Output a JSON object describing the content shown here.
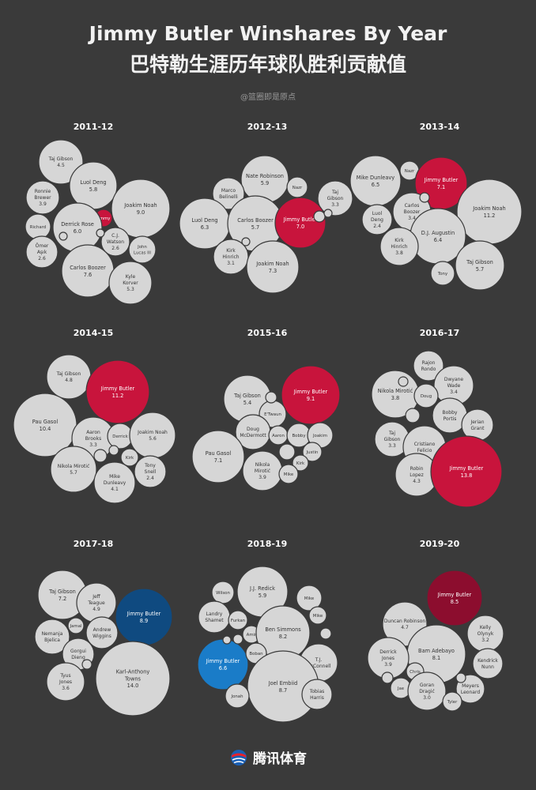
{
  "header": {
    "title_en": "Jimmy Butler Winshares By Year",
    "title_cn": "巴特勒生涯历年球队胜利贡献值",
    "credit": "@篮圈即是原点"
  },
  "footer": {
    "brand": "腾讯体育",
    "logo_icon": "tencent-sports-ball-icon"
  },
  "colors": {
    "bubble": "#d6d6d6",
    "text": "#333333",
    "background": "#3a3a3a"
  },
  "chart_data": [
    {
      "type": "bubble",
      "season": "2011-12",
      "highlight_color": "#c8143c",
      "players": [
        {
          "name": "Taj Gibson",
          "ws": 4.5
        },
        {
          "name": "Luol Deng",
          "ws": 5.8
        },
        {
          "name": "Ronnie Brewer",
          "ws": 3.9
        },
        {
          "name": "Joakim Noah",
          "ws": 9.0
        },
        {
          "name": "Jimmy",
          "ws": null,
          "highlight": true
        },
        {
          "name": "Derrick Rose",
          "ws": 6.0
        },
        {
          "name": "Richard",
          "ws": null
        },
        {
          "name": "C.J. Watson",
          "ws": 2.6
        },
        {
          "name": "Ömer Aşık",
          "ws": 2.6
        },
        {
          "name": "John Lucas III",
          "ws": null
        },
        {
          "name": "Carlos Boozer",
          "ws": 7.6
        },
        {
          "name": "Kyle Korver",
          "ws": 5.3
        },
        {
          "name": "",
          "ws": null
        },
        {
          "name": "",
          "ws": null
        }
      ]
    },
    {
      "type": "bubble",
      "season": "2012-13",
      "highlight_color": "#c8143c",
      "players": [
        {
          "name": "Nate Robinson",
          "ws": 5.9
        },
        {
          "name": "Marco Belinelli",
          "ws": null
        },
        {
          "name": "Nazr",
          "ws": null
        },
        {
          "name": "Taj Gibson",
          "ws": 3.3
        },
        {
          "name": "Luol Deng",
          "ws": 6.3
        },
        {
          "name": "Carlos Boozer",
          "ws": 5.7
        },
        {
          "name": "Jimmy Butler",
          "ws": 7.0,
          "highlight": true
        },
        {
          "name": "Kirk Hinrich",
          "ws": 3.1
        },
        {
          "name": "Joakim Noah",
          "ws": 7.3
        },
        {
          "name": "",
          "ws": null
        },
        {
          "name": "",
          "ws": null
        },
        {
          "name": "",
          "ws": null
        }
      ]
    },
    {
      "type": "bubble",
      "season": "2013-14",
      "highlight_color": "#c8143c",
      "players": [
        {
          "name": "Mike Dunleavy",
          "ws": 6.5
        },
        {
          "name": "Nazr",
          "ws": null
        },
        {
          "name": "Jimmy Butler",
          "ws": 7.1,
          "highlight": true
        },
        {
          "name": "Carlos Boozer",
          "ws": 3.4
        },
        {
          "name": "Luol Deng",
          "ws": 2.4
        },
        {
          "name": "Joakim Noah",
          "ws": 11.2
        },
        {
          "name": "D.J. Augustin",
          "ws": 6.4
        },
        {
          "name": "Kirk Hinrich",
          "ws": 3.8
        },
        {
          "name": "Taj Gibson",
          "ws": 5.7
        },
        {
          "name": "Tony",
          "ws": null
        },
        {
          "name": "",
          "ws": null
        }
      ]
    },
    {
      "type": "bubble",
      "season": "2014-15",
      "highlight_color": "#c8143c",
      "players": [
        {
          "name": "Taj Gibson",
          "ws": 4.8
        },
        {
          "name": "Jimmy Butler",
          "ws": 11.2,
          "highlight": true
        },
        {
          "name": "Pau Gasol",
          "ws": 10.4
        },
        {
          "name": "Aaron Brooks",
          "ws": 3.3
        },
        {
          "name": "Derrick",
          "ws": null
        },
        {
          "name": "Joakim Noah",
          "ws": 5.6
        },
        {
          "name": "Kirk",
          "ws": null
        },
        {
          "name": "Nikola Mirotić",
          "ws": 5.7
        },
        {
          "name": "Tony Snell",
          "ws": 2.4
        },
        {
          "name": "Mike Dunleavy",
          "ws": 4.1
        },
        {
          "name": "",
          "ws": null
        },
        {
          "name": "",
          "ws": null
        }
      ]
    },
    {
      "type": "bubble",
      "season": "2015-16",
      "highlight_color": "#c8143c",
      "players": [
        {
          "name": "Taj Gibson",
          "ws": 5.4
        },
        {
          "name": "Jimmy Butler",
          "ws": 9.1,
          "highlight": true
        },
        {
          "name": "E'Twaun",
          "ws": null
        },
        {
          "name": "Doug McDermott",
          "ws": null
        },
        {
          "name": "Aaron",
          "ws": null
        },
        {
          "name": "Bobby",
          "ws": null
        },
        {
          "name": "Joakim",
          "ws": null
        },
        {
          "name": "Justin",
          "ws": null
        },
        {
          "name": "Pau Gasol",
          "ws": 7.1
        },
        {
          "name": "Kirk",
          "ws": null
        },
        {
          "name": "Nikola Mirotić",
          "ws": 3.9
        },
        {
          "name": "Mike",
          "ws": null
        },
        {
          "name": "",
          "ws": null
        },
        {
          "name": "",
          "ws": null
        }
      ]
    },
    {
      "type": "bubble",
      "season": "2016-17",
      "highlight_color": "#c8143c",
      "players": [
        {
          "name": "Rajon Rondo",
          "ws": null
        },
        {
          "name": "Dwyane Wade",
          "ws": 3.4
        },
        {
          "name": "Nikola Mirotić",
          "ws": 3.8
        },
        {
          "name": "Doug",
          "ws": null
        },
        {
          "name": "Bobby Portis",
          "ws": null
        },
        {
          "name": "Jerian Grant",
          "ws": null
        },
        {
          "name": "Taj Gibson",
          "ws": 3.3
        },
        {
          "name": "Cristiano Felicio",
          "ws": null
        },
        {
          "name": "Robin Lopez",
          "ws": 4.3
        },
        {
          "name": "Jimmy Butler",
          "ws": 13.8,
          "highlight": true
        },
        {
          "name": "",
          "ws": null
        },
        {
          "name": "",
          "ws": null
        }
      ]
    },
    {
      "type": "bubble",
      "season": "2017-18",
      "highlight_color": "#0f4a80",
      "players": [
        {
          "name": "Taj Gibson",
          "ws": 7.2
        },
        {
          "name": "Jeff Teague",
          "ws": 4.9
        },
        {
          "name": "Jimmy Butler",
          "ws": 8.9,
          "highlight": true
        },
        {
          "name": "Jamal",
          "ws": null
        },
        {
          "name": "Nemanja Bjelica",
          "ws": null
        },
        {
          "name": "Andrew Wiggins",
          "ws": null
        },
        {
          "name": "Gorgui Dieng",
          "ws": null
        },
        {
          "name": "Tyus Jones",
          "ws": 3.6
        },
        {
          "name": "Karl-Anthony Towns",
          "ws": 14.0
        },
        {
          "name": "",
          "ws": null
        }
      ]
    },
    {
      "type": "bubble",
      "season": "2018-19",
      "highlight_color": "#1a7cc8",
      "players": [
        {
          "name": "Wilson",
          "ws": null
        },
        {
          "name": "J.J. Redick",
          "ws": 5.9
        },
        {
          "name": "Mike",
          "ws": null
        },
        {
          "name": "Landry Shamet",
          "ws": null
        },
        {
          "name": "Furkan",
          "ws": null
        },
        {
          "name": "Mike",
          "ws": null
        },
        {
          "name": "Amir",
          "ws": null
        },
        {
          "name": "Ben Simmons",
          "ws": 8.2
        },
        {
          "name": "Jimmy Butler",
          "ws": 6.6,
          "highlight": true
        },
        {
          "name": "Boban",
          "ws": null
        },
        {
          "name": "T.J. McConnell",
          "ws": null
        },
        {
          "name": "Joel Embiid",
          "ws": 8.7
        },
        {
          "name": "Tobias Harris",
          "ws": null
        },
        {
          "name": "Jonah",
          "ws": null
        },
        {
          "name": "",
          "ws": null
        },
        {
          "name": "",
          "ws": null
        },
        {
          "name": "",
          "ws": null
        }
      ]
    },
    {
      "type": "bubble",
      "season": "2019-20",
      "highlight_color": "#8c0d2e",
      "players": [
        {
          "name": "Jimmy Butler",
          "ws": 8.5,
          "highlight": true
        },
        {
          "name": "Duncan Robinson",
          "ws": 4.7
        },
        {
          "name": "Kelly Olynyk",
          "ws": 3.2
        },
        {
          "name": "Bam Adebayo",
          "ws": 8.1
        },
        {
          "name": "Derrick Jones",
          "ws": 3.9
        },
        {
          "name": "Kendrick Nunn",
          "ws": null
        },
        {
          "name": "Chris",
          "ws": null
        },
        {
          "name": "Jae",
          "ws": null
        },
        {
          "name": "Goran Dragić",
          "ws": 3.0
        },
        {
          "name": "Meyers Leonard",
          "ws": null
        },
        {
          "name": "Tyler",
          "ws": null
        },
        {
          "name": "",
          "ws": null
        },
        {
          "name": "",
          "ws": null
        }
      ]
    }
  ]
}
